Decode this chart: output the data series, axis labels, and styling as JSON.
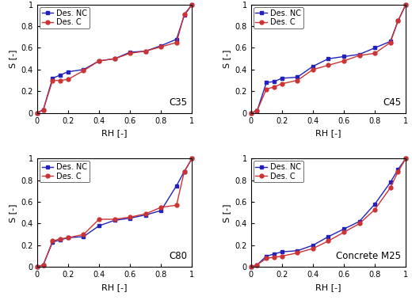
{
  "subplots": [
    {
      "label": "C35",
      "nc_x": [
        0,
        0.04,
        0.1,
        0.15,
        0.2,
        0.3,
        0.4,
        0.5,
        0.6,
        0.7,
        0.8,
        0.9,
        0.95,
        1.0
      ],
      "nc_y": [
        0,
        0.03,
        0.32,
        0.35,
        0.38,
        0.4,
        0.48,
        0.5,
        0.56,
        0.57,
        0.62,
        0.68,
        0.9,
        1.0
      ],
      "c_x": [
        0,
        0.04,
        0.1,
        0.15,
        0.2,
        0.3,
        0.4,
        0.5,
        0.6,
        0.7,
        0.8,
        0.9,
        0.95,
        1.0
      ],
      "c_y": [
        0,
        0.03,
        0.3,
        0.3,
        0.31,
        0.39,
        0.48,
        0.5,
        0.55,
        0.57,
        0.61,
        0.65,
        0.91,
        1.0
      ]
    },
    {
      "label": "C45",
      "nc_x": [
        0,
        0.04,
        0.1,
        0.15,
        0.2,
        0.3,
        0.4,
        0.5,
        0.6,
        0.7,
        0.8,
        0.9,
        0.95,
        1.0
      ],
      "nc_y": [
        0,
        0.02,
        0.28,
        0.29,
        0.32,
        0.33,
        0.43,
        0.5,
        0.52,
        0.54,
        0.6,
        0.66,
        0.85,
        1.0
      ],
      "c_x": [
        0,
        0.04,
        0.1,
        0.15,
        0.2,
        0.3,
        0.4,
        0.5,
        0.6,
        0.7,
        0.8,
        0.9,
        0.95,
        1.0
      ],
      "c_y": [
        0,
        0.02,
        0.22,
        0.24,
        0.27,
        0.3,
        0.4,
        0.44,
        0.48,
        0.53,
        0.55,
        0.65,
        0.85,
        1.0
      ]
    },
    {
      "label": "C80",
      "nc_x": [
        0,
        0.04,
        0.1,
        0.15,
        0.2,
        0.3,
        0.4,
        0.5,
        0.6,
        0.7,
        0.8,
        0.9,
        0.95,
        1.0
      ],
      "nc_y": [
        0,
        0.02,
        0.23,
        0.25,
        0.27,
        0.28,
        0.38,
        0.43,
        0.45,
        0.48,
        0.52,
        0.75,
        0.88,
        1.0
      ],
      "c_x": [
        0,
        0.04,
        0.1,
        0.15,
        0.2,
        0.3,
        0.4,
        0.5,
        0.6,
        0.7,
        0.8,
        0.9,
        0.95,
        1.0
      ],
      "c_y": [
        0,
        0.02,
        0.24,
        0.26,
        0.27,
        0.3,
        0.44,
        0.44,
        0.46,
        0.49,
        0.55,
        0.57,
        0.88,
        1.0
      ]
    },
    {
      "label": "Concrete M25",
      "nc_x": [
        0,
        0.04,
        0.1,
        0.15,
        0.2,
        0.3,
        0.4,
        0.5,
        0.6,
        0.7,
        0.8,
        0.9,
        0.95,
        1.0
      ],
      "nc_y": [
        0,
        0.02,
        0.1,
        0.12,
        0.14,
        0.15,
        0.2,
        0.28,
        0.35,
        0.42,
        0.58,
        0.78,
        0.9,
        1.0
      ],
      "c_x": [
        0,
        0.04,
        0.1,
        0.15,
        0.2,
        0.3,
        0.4,
        0.5,
        0.6,
        0.7,
        0.8,
        0.9,
        0.95,
        1.0
      ],
      "c_y": [
        0,
        0.02,
        0.08,
        0.09,
        0.1,
        0.13,
        0.17,
        0.24,
        0.32,
        0.4,
        0.53,
        0.73,
        0.88,
        1.0
      ]
    }
  ],
  "nc_color": "#2222bb",
  "c_color": "#cc3333",
  "nc_label": "Des. NC",
  "c_label": "Des. C",
  "xlabel": "RH [-]",
  "ylabel": "S [-]",
  "xlim": [
    0,
    1.0
  ],
  "ylim": [
    0,
    1.0
  ],
  "xticks": [
    0,
    0.2,
    0.4,
    0.6,
    0.8,
    1
  ],
  "yticks": [
    0,
    0.2,
    0.4,
    0.6,
    0.8,
    1
  ],
  "xticklabels": [
    "0",
    "0.2",
    "0.4",
    "0.6",
    "0.8",
    "1"
  ],
  "yticklabels": [
    "0",
    "0.2",
    "0.4",
    "0.6",
    "0.8",
    "1"
  ]
}
